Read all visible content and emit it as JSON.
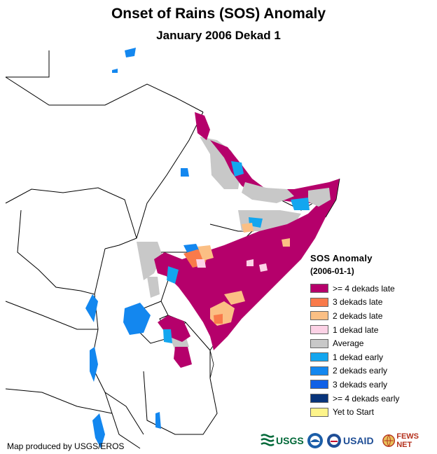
{
  "title": "Onset of Rains (SOS) Anomaly",
  "subtitle": "January 2006 Dekad 1",
  "legend": {
    "title": "SOS Anomaly",
    "date": "(2006-01-1)",
    "items": [
      {
        "label": ">= 4 dekads late",
        "color": "#b5006b"
      },
      {
        "label": "3 dekads late",
        "color": "#f97a4a"
      },
      {
        "label": "2 dekads late",
        "color": "#fbbf84"
      },
      {
        "label": "1 dekad late",
        "color": "#fcd2e6"
      },
      {
        "label": "Average",
        "color": "#c8c8c8"
      },
      {
        "label": "1 dekad early",
        "color": "#13a6ef"
      },
      {
        "label": "2 dekads early",
        "color": "#1387ef"
      },
      {
        "label": "3 dekads early",
        "color": "#1060e6"
      },
      {
        "label": ">= 4 dekads early",
        "color": "#08347a"
      },
      {
        "label": "Yet to Start",
        "color": "#fdf48a"
      }
    ]
  },
  "credit": "Map produced by USGS/EROS",
  "logos": {
    "usgs": "USGS",
    "usaid": "USAID",
    "fewsnet": "FEWS NET"
  }
}
